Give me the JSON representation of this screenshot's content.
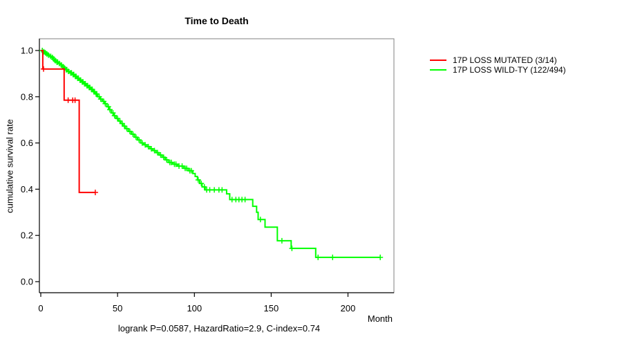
{
  "chart_data": {
    "type": "line",
    "subtype": "kaplan-meier-step-curves",
    "title": "Time to Death",
    "xlabel": "Month",
    "ylabel": "cumulative survival rate",
    "footer": "logrank P=0.0587, HazardRatio=2.9, C-index=0.74",
    "xlim": [
      0,
      230
    ],
    "ylim": [
      0,
      1.0
    ],
    "grid": false,
    "legend_position": "right-outside",
    "x_ticks": [
      {
        "v": 0,
        "label": "0"
      },
      {
        "v": 50,
        "label": "50"
      },
      {
        "v": 100,
        "label": "100"
      },
      {
        "v": 150,
        "label": "150"
      },
      {
        "v": 200,
        "label": "200"
      }
    ],
    "y_ticks": [
      {
        "v": 1.0,
        "label": "1.0"
      },
      {
        "v": 0.8,
        "label": "0.8"
      },
      {
        "v": 0.6,
        "label": "0.6"
      },
      {
        "v": 0.4,
        "label": "0.4"
      },
      {
        "v": 0.2,
        "label": "0.2"
      },
      {
        "v": 0.0,
        "label": "0.0"
      }
    ],
    "series": [
      {
        "label": "17P LOSS WILD-TY (122/494)",
        "color": "#00ff00",
        "events": 122,
        "n": 494,
        "points": [
          [
            0,
            1.0
          ],
          [
            1.5,
            0.995
          ],
          [
            2.5,
            0.99
          ],
          [
            3.5,
            0.985
          ],
          [
            4.5,
            0.98
          ],
          [
            6,
            0.975
          ],
          [
            7,
            0.97
          ],
          [
            8,
            0.963
          ],
          [
            9,
            0.956
          ],
          [
            10,
            0.95
          ],
          [
            11.5,
            0.944
          ],
          [
            13,
            0.937
          ],
          [
            14,
            0.93
          ],
          [
            15,
            0.924
          ],
          [
            16,
            0.917
          ],
          [
            17.5,
            0.91
          ],
          [
            19,
            0.903
          ],
          [
            20.5,
            0.896
          ],
          [
            22,
            0.888
          ],
          [
            23.5,
            0.88
          ],
          [
            25,
            0.872
          ],
          [
            26.5,
            0.864
          ],
          [
            28,
            0.856
          ],
          [
            29.5,
            0.848
          ],
          [
            31,
            0.84
          ],
          [
            32.5,
            0.832
          ],
          [
            34,
            0.822
          ],
          [
            35.5,
            0.812
          ],
          [
            37,
            0.8
          ],
          [
            38.5,
            0.79
          ],
          [
            40,
            0.78
          ],
          [
            41.5,
            0.77
          ],
          [
            43,
            0.757
          ],
          [
            44.5,
            0.744
          ],
          [
            46,
            0.73
          ],
          [
            47.5,
            0.718
          ],
          [
            49,
            0.706
          ],
          [
            50.5,
            0.695
          ],
          [
            52,
            0.684
          ],
          [
            53.5,
            0.673
          ],
          [
            55,
            0.662
          ],
          [
            57,
            0.65
          ],
          [
            59,
            0.638
          ],
          [
            61,
            0.625
          ],
          [
            63,
            0.613
          ],
          [
            65,
            0.6
          ],
          [
            67,
            0.592
          ],
          [
            69,
            0.584
          ],
          [
            71,
            0.575
          ],
          [
            73,
            0.567
          ],
          [
            75,
            0.558
          ],
          [
            77,
            0.548
          ],
          [
            79,
            0.538
          ],
          [
            81,
            0.527
          ],
          [
            83,
            0.516
          ],
          [
            86,
            0.508
          ],
          [
            89,
            0.5
          ],
          [
            93,
            0.49
          ],
          [
            96,
            0.48
          ],
          [
            99,
            0.468
          ],
          [
            100.5,
            0.455
          ],
          [
            102,
            0.44
          ],
          [
            103.5,
            0.425
          ],
          [
            105,
            0.41
          ],
          [
            107,
            0.397
          ],
          [
            121,
            0.38
          ],
          [
            123,
            0.355
          ],
          [
            138,
            0.326
          ],
          [
            140.5,
            0.3
          ],
          [
            141.5,
            0.269
          ],
          [
            146,
            0.236
          ],
          [
            154,
            0.177
          ],
          [
            163,
            0.144
          ],
          [
            179,
            0.105
          ],
          [
            221,
            0.105
          ]
        ],
        "censor_times": [
          1,
          2,
          3,
          4,
          5,
          6.5,
          7.5,
          8.5,
          9.5,
          10.5,
          11,
          12,
          13.5,
          14.5,
          15.5,
          16.5,
          17,
          18,
          19.5,
          20,
          21,
          21.5,
          22.5,
          23,
          24,
          24.5,
          25.5,
          26,
          27,
          27.5,
          28.5,
          29,
          30,
          30.5,
          31.5,
          32,
          33,
          33.5,
          34.5,
          35,
          36,
          36.5,
          38,
          39,
          41,
          42,
          44,
          45,
          47,
          48,
          50,
          51.5,
          53,
          54.5,
          56,
          58,
          60,
          62,
          64,
          66,
          68,
          70,
          72,
          74,
          76,
          78,
          80,
          82,
          84,
          85,
          87,
          88,
          90,
          92,
          94,
          95,
          97,
          98,
          102.5,
          104.5,
          106.5,
          108,
          110,
          113,
          116,
          118,
          124.5,
          127,
          129,
          131,
          133,
          143,
          157,
          163.5,
          180.5,
          190,
          221
        ]
      },
      {
        "label": "17P LOSS MUTATED (3/14)",
        "color": "#ff0000",
        "events": 3,
        "n": 14,
        "points": [
          [
            0,
            1.0
          ],
          [
            1.3,
            0.92
          ],
          [
            15.2,
            0.785
          ],
          [
            25,
            0.386
          ],
          [
            35.5,
            0.386
          ]
        ],
        "censor_times": [
          1.8,
          17.8,
          20.8,
          22.3,
          35.5
        ]
      }
    ]
  },
  "legend": {
    "items": [
      {
        "label": "17P LOSS MUTATED (3/14)",
        "color": "#ff0000"
      },
      {
        "label": "17P LOSS WILD-TY (122/494)",
        "color": "#00ff00"
      }
    ]
  },
  "colors": {
    "mutated": "#ff0000",
    "wild_type": "#00ff00",
    "axis": "#000000",
    "plot_border": "#808080",
    "background": "#ffffff"
  }
}
